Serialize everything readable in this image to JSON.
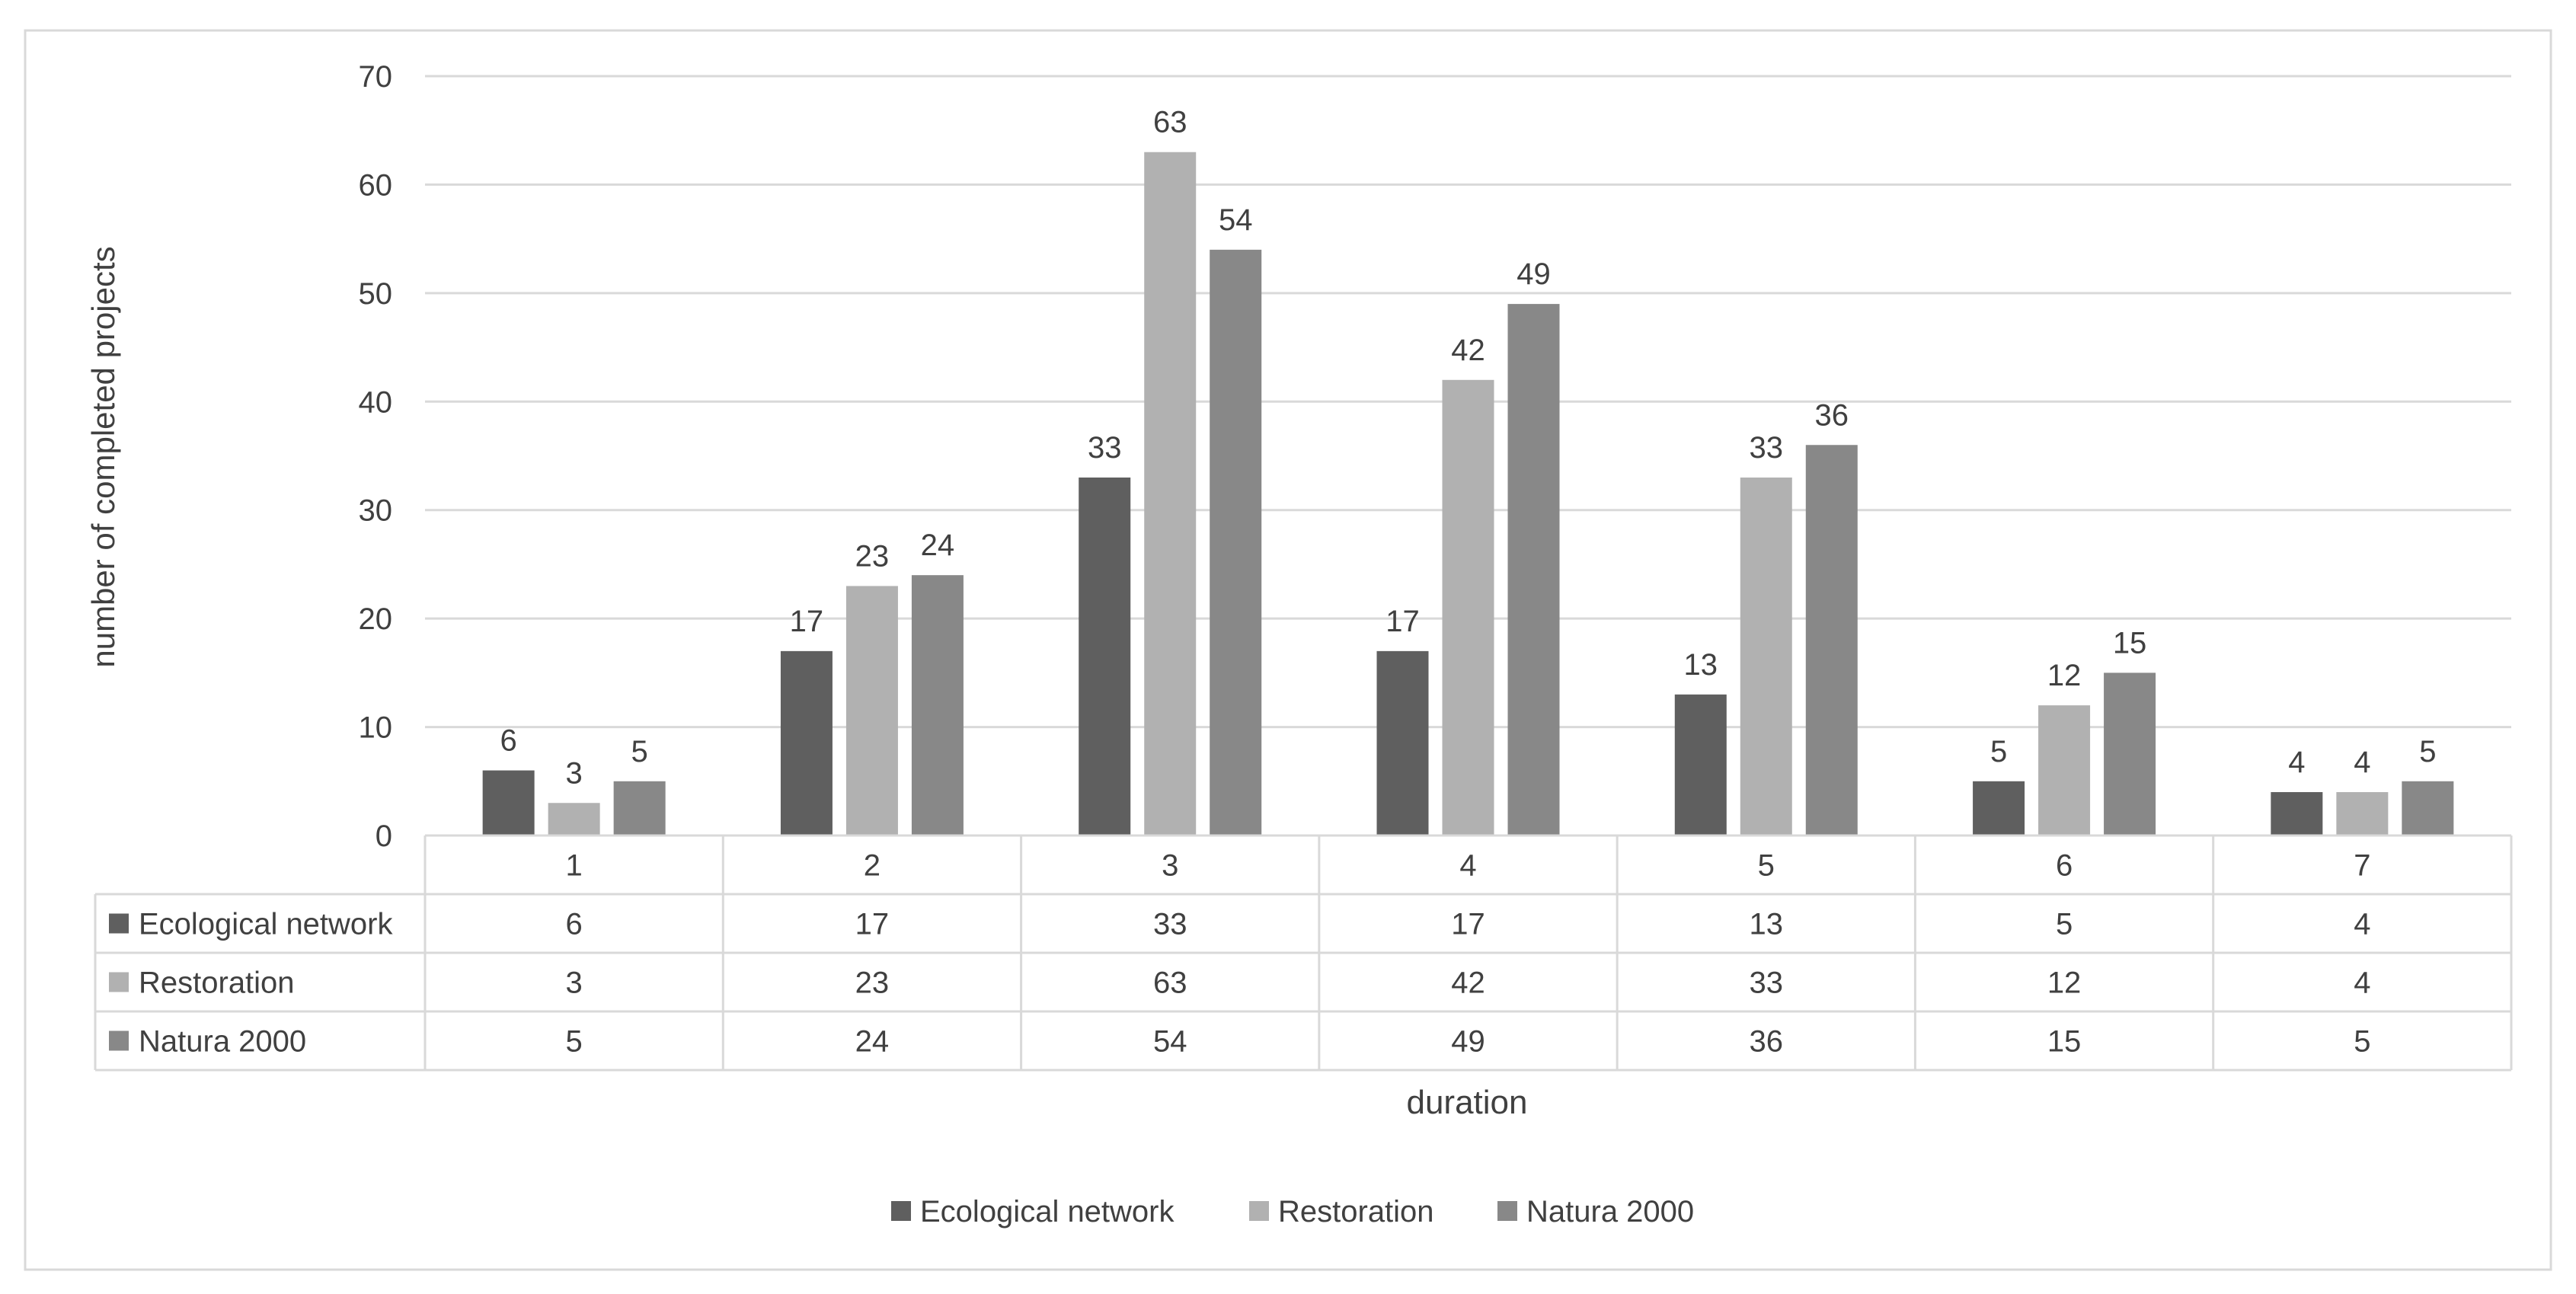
{
  "chart_data": {
    "type": "bar",
    "xlabel": "duration",
    "ylabel": "number of completed projects",
    "ylim": [
      0,
      70
    ],
    "yticks": [
      0,
      10,
      20,
      30,
      40,
      50,
      60,
      70
    ],
    "grid": true,
    "legend_position": "bottom",
    "data_table": true,
    "categories": [
      "1",
      "2",
      "3",
      "4",
      "5",
      "6",
      "7"
    ],
    "series": [
      {
        "name": "Ecological network",
        "values": [
          6,
          17,
          33,
          17,
          13,
          5,
          4
        ],
        "color": "#5f5f5f"
      },
      {
        "name": "Restoration",
        "values": [
          3,
          23,
          63,
          42,
          33,
          12,
          4
        ],
        "color": "#b1b1b1"
      },
      {
        "name": "Natura 2000",
        "values": [
          5,
          24,
          54,
          49,
          36,
          15,
          5
        ],
        "color": "#888888"
      }
    ]
  }
}
